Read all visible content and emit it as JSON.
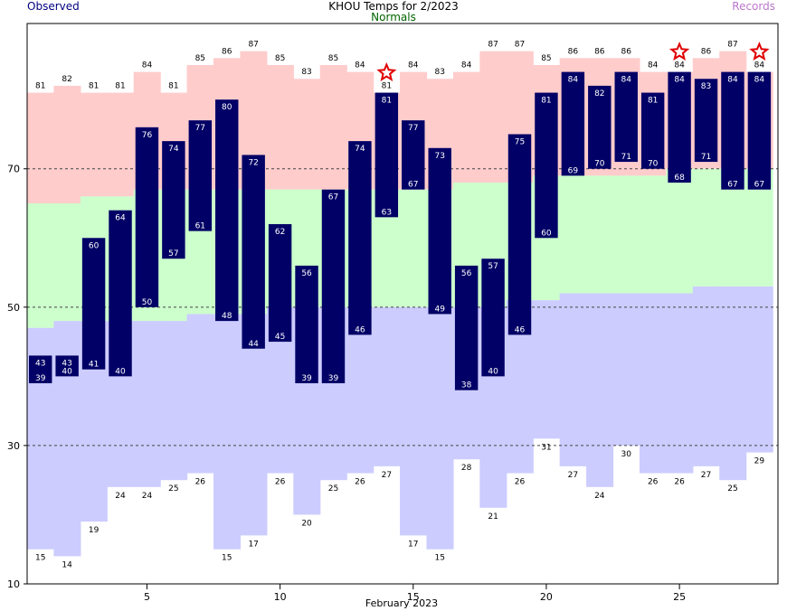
{
  "chart_data": {
    "type": "bar",
    "title": "KHOU Temps for 2/2023",
    "legend": {
      "left": "Observed",
      "center": "Normals",
      "right": "Records"
    },
    "xlabel": "February 2023",
    "ylabel": "",
    "ylim": [
      10,
      91
    ],
    "yticks": [
      10,
      30,
      50,
      70
    ],
    "xticks": [
      5,
      10,
      15,
      20,
      25
    ],
    "grid": "dashed horizontal at 30, 50, 70",
    "days": [
      1,
      2,
      3,
      4,
      5,
      6,
      7,
      8,
      9,
      10,
      11,
      12,
      13,
      14,
      15,
      16,
      17,
      18,
      19,
      20,
      21,
      22,
      23,
      24,
      25,
      26,
      27,
      28
    ],
    "record_high": [
      81,
      82,
      81,
      81,
      84,
      81,
      85,
      86,
      87,
      85,
      83,
      85,
      84,
      81,
      84,
      83,
      84,
      87,
      87,
      85,
      86,
      86,
      86,
      84,
      84,
      86,
      87,
      84
    ],
    "record_low": [
      15,
      14,
      19,
      24,
      24,
      25,
      26,
      15,
      17,
      26,
      20,
      25,
      26,
      27,
      17,
      15,
      28,
      21,
      26,
      31,
      27,
      24,
      30,
      26,
      26,
      27,
      25,
      29
    ],
    "normal_high": [
      65,
      65,
      66,
      66,
      67,
      67,
      67,
      67,
      67,
      67,
      67,
      67,
      67,
      67,
      67,
      67,
      68,
      68,
      68,
      69,
      69,
      69,
      69,
      69,
      70,
      70,
      70,
      70
    ],
    "normal_low": [
      47,
      48,
      48,
      48,
      48,
      48,
      49,
      49,
      49,
      50,
      50,
      50,
      50,
      50,
      50,
      50,
      50,
      50,
      51,
      51,
      52,
      52,
      52,
      52,
      52,
      53,
      53,
      53
    ],
    "series": [
      {
        "name": "Observed high",
        "values": [
          43,
          43,
          60,
          64,
          76,
          74,
          77,
          80,
          72,
          62,
          56,
          67,
          74,
          81,
          77,
          73,
          56,
          57,
          75,
          81,
          84,
          82,
          84,
          81,
          84,
          83,
          84,
          84
        ]
      },
      {
        "name": "Observed low",
        "values": [
          39,
          40,
          41,
          40,
          50,
          57,
          61,
          48,
          44,
          45,
          39,
          39,
          46,
          63,
          67,
          49,
          38,
          40,
          46,
          60,
          69,
          70,
          71,
          70,
          68,
          71,
          67,
          67
        ]
      }
    ],
    "record_set_days": [
      14,
      25,
      28
    ],
    "colors": {
      "record_band": "#ffcccc",
      "normal_band": "#ccffcc",
      "low_band": "#ccccff",
      "observed_bar": "#000066",
      "observed_label": "#ffffff",
      "star": "#e00000",
      "gridline": "#444444",
      "title_observed": "#000080",
      "title_normals": "#006400",
      "title_records": "#bb77cc"
    }
  }
}
